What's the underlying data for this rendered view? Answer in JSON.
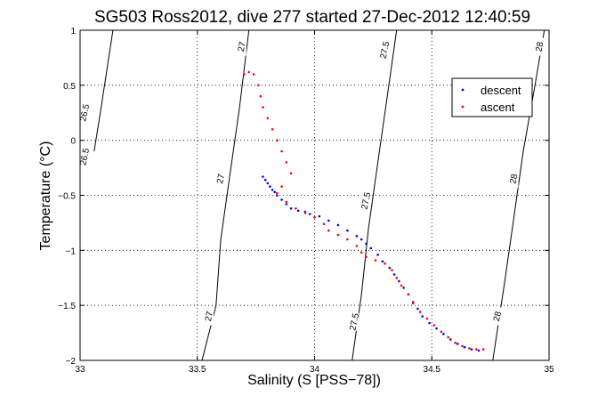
{
  "chart_data": {
    "type": "scatter",
    "title": "SG503 Ross2012, dive 277 started 27-Dec-2012 12:40:59",
    "xlabel": "Salinity (S [PSS−78])",
    "ylabel": "Temperature (°C)",
    "xlim": [
      33,
      35
    ],
    "ylim": [
      -2,
      1
    ],
    "xticks": [
      "33",
      "33.5",
      "34",
      "34.5",
      "35"
    ],
    "yticks": [
      "−2",
      "−1.5",
      "−1",
      "−0.5",
      "0",
      "0.5",
      "1"
    ],
    "grid": true,
    "legend_position": "top-right",
    "series": [
      {
        "name": "descent",
        "color": "#0000ff",
        "points": [
          [
            33.78,
            -0.33
          ],
          [
            33.79,
            -0.36
          ],
          [
            33.8,
            -0.39
          ],
          [
            33.81,
            -0.42
          ],
          [
            33.82,
            -0.45
          ],
          [
            33.83,
            -0.47
          ],
          [
            33.84,
            -0.5
          ],
          [
            33.86,
            -0.54
          ],
          [
            33.88,
            -0.58
          ],
          [
            33.9,
            -0.62
          ],
          [
            33.93,
            -0.64
          ],
          [
            33.96,
            -0.65
          ],
          [
            33.98,
            -0.67
          ],
          [
            34.02,
            -0.69
          ],
          [
            34.06,
            -0.73
          ],
          [
            34.1,
            -0.77
          ],
          [
            34.14,
            -0.82
          ],
          [
            34.18,
            -0.87
          ],
          [
            34.2,
            -0.9
          ],
          [
            34.22,
            -0.94
          ],
          [
            34.24,
            -0.98
          ],
          [
            34.27,
            -1.04
          ],
          [
            34.29,
            -1.1
          ],
          [
            34.32,
            -1.16
          ],
          [
            34.34,
            -1.22
          ],
          [
            34.36,
            -1.28
          ],
          [
            34.38,
            -1.34
          ],
          [
            34.4,
            -1.4
          ],
          [
            34.42,
            -1.47
          ],
          [
            34.44,
            -1.53
          ],
          [
            34.46,
            -1.6
          ],
          [
            34.49,
            -1.66
          ],
          [
            34.52,
            -1.71
          ],
          [
            34.55,
            -1.76
          ],
          [
            34.58,
            -1.81
          ],
          [
            34.61,
            -1.85
          ],
          [
            34.64,
            -1.88
          ],
          [
            34.67,
            -1.9
          ],
          [
            34.7,
            -1.91
          ]
        ]
      },
      {
        "name": "ascent",
        "color": "#ff0000",
        "points": [
          [
            33.7,
            0.6
          ],
          [
            33.72,
            0.62
          ],
          [
            33.74,
            0.6
          ],
          [
            33.76,
            0.5
          ],
          [
            33.77,
            0.4
          ],
          [
            33.78,
            0.3
          ],
          [
            33.8,
            0.2
          ],
          [
            33.82,
            0.1
          ],
          [
            33.84,
            0.0
          ],
          [
            33.86,
            -0.1
          ],
          [
            33.88,
            -0.2
          ],
          [
            33.9,
            -0.3
          ],
          [
            33.86,
            -0.42
          ],
          [
            33.84,
            -0.48
          ],
          [
            33.88,
            -0.56
          ],
          [
            33.92,
            -0.62
          ],
          [
            33.96,
            -0.66
          ],
          [
            34.0,
            -0.7
          ],
          [
            34.04,
            -0.76
          ],
          [
            34.06,
            -0.82
          ],
          [
            34.1,
            -0.86
          ],
          [
            34.14,
            -0.9
          ],
          [
            34.18,
            -0.96
          ],
          [
            34.2,
            -1.02
          ],
          [
            34.22,
            -1.06
          ],
          [
            34.26,
            -1.09
          ],
          [
            34.3,
            -1.12
          ],
          [
            34.33,
            -1.18
          ],
          [
            34.35,
            -1.25
          ],
          [
            34.37,
            -1.32
          ],
          [
            34.4,
            -1.4
          ],
          [
            34.42,
            -1.48
          ],
          [
            34.45,
            -1.56
          ],
          [
            34.48,
            -1.62
          ],
          [
            34.51,
            -1.68
          ],
          [
            34.54,
            -1.74
          ],
          [
            34.57,
            -1.79
          ],
          [
            34.6,
            -1.84
          ],
          [
            34.63,
            -1.87
          ],
          [
            34.66,
            -1.89
          ],
          [
            34.69,
            -1.9
          ],
          [
            34.72,
            -1.9
          ]
        ]
      }
    ],
    "contours": [
      {
        "label": "26.5",
        "color": "#000000",
        "line": [
          [
            33.06,
            -0.1
          ],
          [
            33.09,
            0.3
          ],
          [
            33.14,
            1.0
          ]
        ],
        "label_positions": [
          [
            33.02,
            -0.15
          ],
          [
            33.02,
            0.25
          ]
        ]
      },
      {
        "label": "27",
        "color": "#000000",
        "line": [
          [
            33.52,
            -2.0
          ],
          [
            33.58,
            -1.5
          ],
          [
            33.6,
            -0.9
          ],
          [
            33.64,
            -0.3
          ],
          [
            33.68,
            0.3
          ],
          [
            33.72,
            1.0
          ]
        ],
        "label_positions": [
          [
            33.55,
            -1.6
          ],
          [
            33.6,
            -0.35
          ],
          [
            33.69,
            0.85
          ]
        ]
      },
      {
        "label": "27.5",
        "color": "#000000",
        "line": [
          [
            34.16,
            -2.0
          ],
          [
            34.2,
            -1.4
          ],
          [
            34.23,
            -0.8
          ],
          [
            34.27,
            -0.2
          ],
          [
            34.31,
            0.4
          ],
          [
            34.35,
            1.0
          ]
        ],
        "label_positions": [
          [
            34.17,
            -1.65
          ],
          [
            34.22,
            -0.55
          ],
          [
            34.3,
            0.82
          ]
        ]
      },
      {
        "label": "28",
        "color": "#000000",
        "line": [
          [
            34.76,
            -2.0
          ],
          [
            34.81,
            -1.3
          ],
          [
            34.85,
            -0.7
          ],
          [
            34.89,
            -0.1
          ],
          [
            34.94,
            0.5
          ],
          [
            34.98,
            1.0
          ]
        ],
        "label_positions": [
          [
            34.78,
            -1.6
          ],
          [
            34.85,
            -0.35
          ],
          [
            34.96,
            0.85
          ]
        ]
      }
    ]
  }
}
